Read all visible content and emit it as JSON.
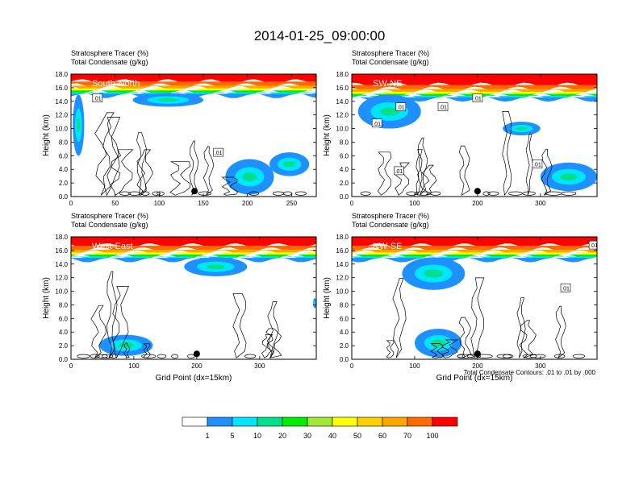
{
  "title": "2014-01-25_09:00:00",
  "colors": [
    "#ffffff",
    "#1e90ff",
    "#00e5ff",
    "#00e08a",
    "#00ee00",
    "#a0e832",
    "#ffff00",
    "#ffd000",
    "#ffa500",
    "#ff6a00",
    "#ff0000"
  ],
  "chart_data": {
    "type": "heatmap",
    "footnote": "Total Condensate Contours: .01 to .01 by .000",
    "colorbar": {
      "levels": [
        1,
        5,
        10,
        20,
        30,
        40,
        50,
        60,
        70,
        100
      ]
    },
    "panels": [
      {
        "title_line1": "Stratosphere Tracer   (%)",
        "title_line2": "Total Condensate   (g/kg)",
        "label": "South-North",
        "ylabel": "Height (km)",
        "xlabel": "",
        "xlim": [
          0,
          278
        ],
        "ylim": [
          0,
          18
        ],
        "xticks": [
          "0",
          "50",
          "100",
          "150",
          "200",
          "250"
        ],
        "xtick_values": [
          0,
          50,
          100,
          150,
          200,
          250
        ],
        "yticks": [
          "0.0",
          "2.0",
          "4.0",
          "6.0",
          "8.0",
          "10.0",
          "12.0",
          "14.0",
          "16.0",
          "18.0"
        ],
        "ytick_values": [
          0,
          2,
          4,
          6,
          8,
          10,
          12,
          14,
          16,
          18
        ],
        "marker_x": 140,
        "contour_labels": [
          {
            "text": ".01",
            "x": 30,
            "y": 14.5
          },
          {
            "text": ".01",
            "x": 167,
            "y": 6.5
          }
        ],
        "tracer_base_km": 15.0,
        "blobs": [
          {
            "x": [
              2,
              15
            ],
            "y": [
              6,
              15
            ],
            "level": 2
          },
          {
            "x": [
              70,
              150
            ],
            "y": [
              13.2,
              15.2
            ],
            "level": 2
          },
          {
            "x": [
              175,
              230
            ],
            "y": [
              0.3,
              5.5
            ],
            "level": 2
          },
          {
            "x": [
              225,
              270
            ],
            "y": [
              3,
              6.5
            ],
            "level": 2
          }
        ]
      },
      {
        "title_line1": "Stratosphere Tracer   (%)",
        "title_line2": "Total Condensate   (g/kg)",
        "label": "SW-NE",
        "ylabel": "Height (km)",
        "xlabel": "",
        "xlim": [
          0,
          390
        ],
        "ylim": [
          0,
          18
        ],
        "xticks": [
          "0",
          "100",
          "200",
          "300"
        ],
        "xtick_values": [
          0,
          100,
          200,
          300
        ],
        "yticks": [
          "0.0",
          "2.0",
          "4.0",
          "6.0",
          "8.0",
          "10.0",
          "12.0",
          "14.0",
          "16.0",
          "18.0"
        ],
        "ytick_values": [
          0,
          2,
          4,
          6,
          8,
          10,
          12,
          14,
          16,
          18
        ],
        "marker_x": 200,
        "contour_labels": [
          {
            "text": ".01",
            "x": 78,
            "y": 13.2
          },
          {
            "text": ".01",
            "x": 40,
            "y": 10.8
          },
          {
            "text": ".01",
            "x": 145,
            "y": 13.2
          },
          {
            "text": ".01",
            "x": 200,
            "y": 14.5
          },
          {
            "text": ".01",
            "x": 75,
            "y": 3.8
          },
          {
            "text": ".01",
            "x": 295,
            "y": 4.8
          }
        ],
        "tracer_base_km": 14.5,
        "blobs": [
          {
            "x": [
              10,
              110
            ],
            "y": [
              10,
              15
            ],
            "level": 2
          },
          {
            "x": [
              240,
              300
            ],
            "y": [
              9,
              11
            ],
            "level": 2
          },
          {
            "x": [
              300,
              390
            ],
            "y": [
              0.8,
              5
            ],
            "level": 2
          }
        ]
      },
      {
        "title_line1": "Stratosphere Tracer   (%)",
        "title_line2": "Total Condensate   (g/kg)",
        "label": "West-East",
        "ylabel": "Height (km)",
        "xlabel": "Grid Point (dx=15km)",
        "xlim": [
          0,
          390
        ],
        "ylim": [
          0,
          18
        ],
        "xticks": [
          "0",
          "100",
          "200",
          "300"
        ],
        "xtick_values": [
          0,
          100,
          200,
          300
        ],
        "yticks": [
          "0.0",
          "2.0",
          "4.0",
          "6.0",
          "8.0",
          "10.0",
          "12.0",
          "14.0",
          "16.0",
          "18.0"
        ],
        "ytick_values": [
          0,
          2,
          4,
          6,
          8,
          10,
          12,
          14,
          16,
          18
        ],
        "marker_x": 200,
        "contour_labels": [],
        "tracer_base_km": 14.8,
        "blobs": [
          {
            "x": [
              180,
              280
            ],
            "y": [
              12.2,
              15
            ],
            "level": 2
          },
          {
            "x": [
              385,
              390
            ],
            "y": [
              7.5,
              9
            ],
            "level": 2
          },
          {
            "x": [
              45,
              130
            ],
            "y": [
              0.5,
              3.6
            ],
            "level": 2
          }
        ]
      },
      {
        "title_line1": "Stratosphere Tracer   (%)",
        "title_line2": "Total Condensate   (g/kg)",
        "label": "NW-SE",
        "ylabel": "Height (km)",
        "xlabel": "Grid Point (dx=15km)",
        "xlim": [
          0,
          390
        ],
        "ylim": [
          0,
          18
        ],
        "xticks": [
          "0",
          "100",
          "200",
          "300"
        ],
        "xtick_values": [
          0,
          100,
          200,
          300
        ],
        "yticks": [
          "0.0",
          "2.0",
          "4.0",
          "6.0",
          "8.0",
          "10.0",
          "12.0",
          "14.0",
          "16.0",
          "18.0"
        ],
        "ytick_values": [
          0,
          2,
          4,
          6,
          8,
          10,
          12,
          14,
          16,
          18
        ],
        "marker_x": 200,
        "contour_labels": [
          {
            "text": ".01",
            "x": 385,
            "y": 16.8
          },
          {
            "text": ".01",
            "x": 340,
            "y": 10.5
          }
        ],
        "tracer_base_km": 14.8,
        "blobs": [
          {
            "x": [
              80,
              180
            ],
            "y": [
              10.2,
              15
            ],
            "level": 2
          },
          {
            "x": [
              100,
              175
            ],
            "y": [
              0.3,
              4.5
            ],
            "level": 2
          }
        ]
      }
    ]
  }
}
